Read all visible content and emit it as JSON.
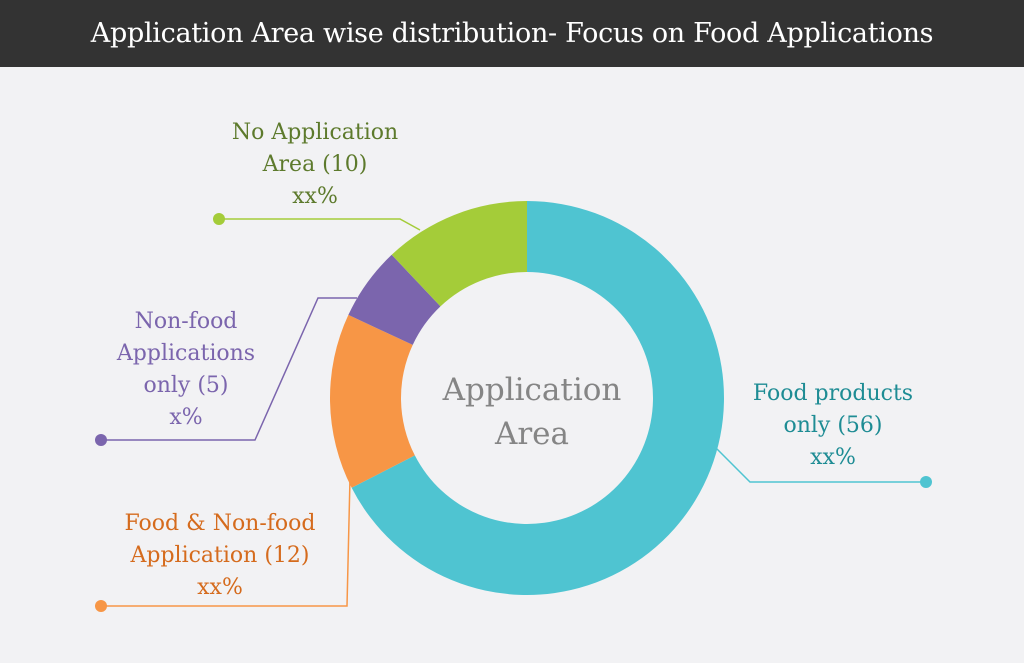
{
  "title": "Application Area wise distribution- Focus on Food Applications",
  "chart_data": {
    "type": "pie",
    "center_label": [
      "Application",
      "Area"
    ],
    "series": [
      {
        "name": "Food products only",
        "value": 56,
        "label_lines": [
          "Food products",
          "only (56)",
          "xx%"
        ],
        "color": "#4fc4d1"
      },
      {
        "name": "Food & Non-food Application",
        "value": 12,
        "label_lines": [
          "Food & Non-food",
          "Application (12)",
          "xx%"
        ],
        "color": "#f79646"
      },
      {
        "name": "Non-food Applications only",
        "value": 5,
        "label_lines": [
          "Non-food",
          "Applications",
          "only (5)",
          "x%"
        ],
        "color": "#7b65ad"
      },
      {
        "name": "No Application Area",
        "value": 10,
        "label_lines": [
          "No Application",
          "Area (10)",
          "xx%"
        ],
        "color": "#a4cc39"
      }
    ],
    "label_colors": [
      "#1e8c94",
      "#d56b1d",
      "#7b65ad",
      "#5d7a2c"
    ]
  }
}
